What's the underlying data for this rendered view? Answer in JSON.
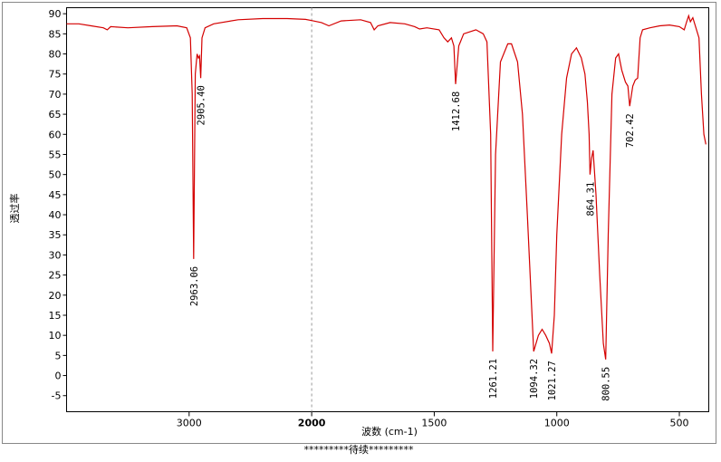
{
  "chart_data": {
    "type": "line",
    "x_label": "波数 (cm-1)",
    "y_label": "透过率",
    "footer": "*********待续*********",
    "xlim": [
      4000,
      380
    ],
    "x_break": 2000,
    "x_break_expansion": 2,
    "xticks": [
      3000,
      2000,
      1500,
      1000,
      500
    ],
    "x_bold_tick": 2000,
    "ylim": [
      -9,
      91.5
    ],
    "yticks": [
      90,
      85,
      80,
      75,
      70,
      65,
      60,
      55,
      50,
      45,
      40,
      35,
      30,
      25,
      20,
      15,
      10,
      5,
      0,
      -5
    ],
    "x": [
      4000,
      3900,
      3800,
      3700,
      3668,
      3640,
      3500,
      3300,
      3100,
      3020,
      2990,
      2975,
      2963.06,
      2950,
      2935,
      2925,
      2915,
      2905.4,
      2895,
      2870,
      2800,
      2600,
      2400,
      2200,
      2050,
      2000,
      1960,
      1930,
      1880,
      1800,
      1760,
      1745,
      1730,
      1680,
      1620,
      1580,
      1560,
      1530,
      1480,
      1460,
      1445,
      1430,
      1420,
      1412.68,
      1400,
      1380,
      1330,
      1300,
      1285,
      1270,
      1261.21,
      1250,
      1230,
      1200,
      1185,
      1160,
      1140,
      1120,
      1094.32,
      1075,
      1060,
      1045,
      1030,
      1021.27,
      1010,
      1000,
      980,
      960,
      940,
      920,
      900,
      885,
      875,
      868,
      864.31,
      858,
      852,
      840,
      825,
      810,
      800.55,
      790,
      775,
      760,
      748,
      735,
      720,
      710,
      702.42,
      690,
      680,
      670,
      660,
      650,
      620,
      580,
      540,
      500,
      480,
      470,
      462,
      455,
      445,
      430,
      420,
      410,
      400,
      392
    ],
    "series": [
      {
        "color": "#d40000",
        "values": [
          87.5,
          87.5,
          87,
          86.5,
          86,
          86.8,
          86.5,
          86.8,
          87,
          86.5,
          84,
          70,
          29,
          75,
          80,
          79,
          79.5,
          74,
          84,
          86.5,
          87.5,
          88.5,
          88.8,
          88.8,
          88.6,
          88.3,
          87.8,
          87,
          88.2,
          88.5,
          87.8,
          86,
          87,
          87.8,
          87.5,
          86.8,
          86.2,
          86.5,
          86,
          84,
          83,
          84,
          82,
          72.5,
          82,
          85,
          86,
          85,
          83,
          60,
          6,
          55,
          78,
          82.5,
          82.5,
          78,
          65,
          40,
          6,
          10,
          11.5,
          10,
          8,
          5.5,
          15,
          35,
          60,
          74,
          80,
          81.5,
          79,
          75,
          68,
          60,
          50,
          54,
          56,
          45,
          25,
          8,
          4,
          35,
          70,
          79,
          80,
          76,
          73,
          72,
          67,
          72,
          73.5,
          74,
          84,
          86,
          86.5,
          87,
          87.2,
          86.8,
          86,
          88,
          89.5,
          88,
          89,
          86,
          84,
          70,
          60,
          57.5
        ]
      }
    ],
    "peaks": [
      2963.06,
      {
        "value": 2905.4,
        "label": "2905.40"
      },
      1412.68,
      1261.21,
      1094.32,
      1021.27,
      864.31,
      800.55,
      702.42
    ]
  }
}
